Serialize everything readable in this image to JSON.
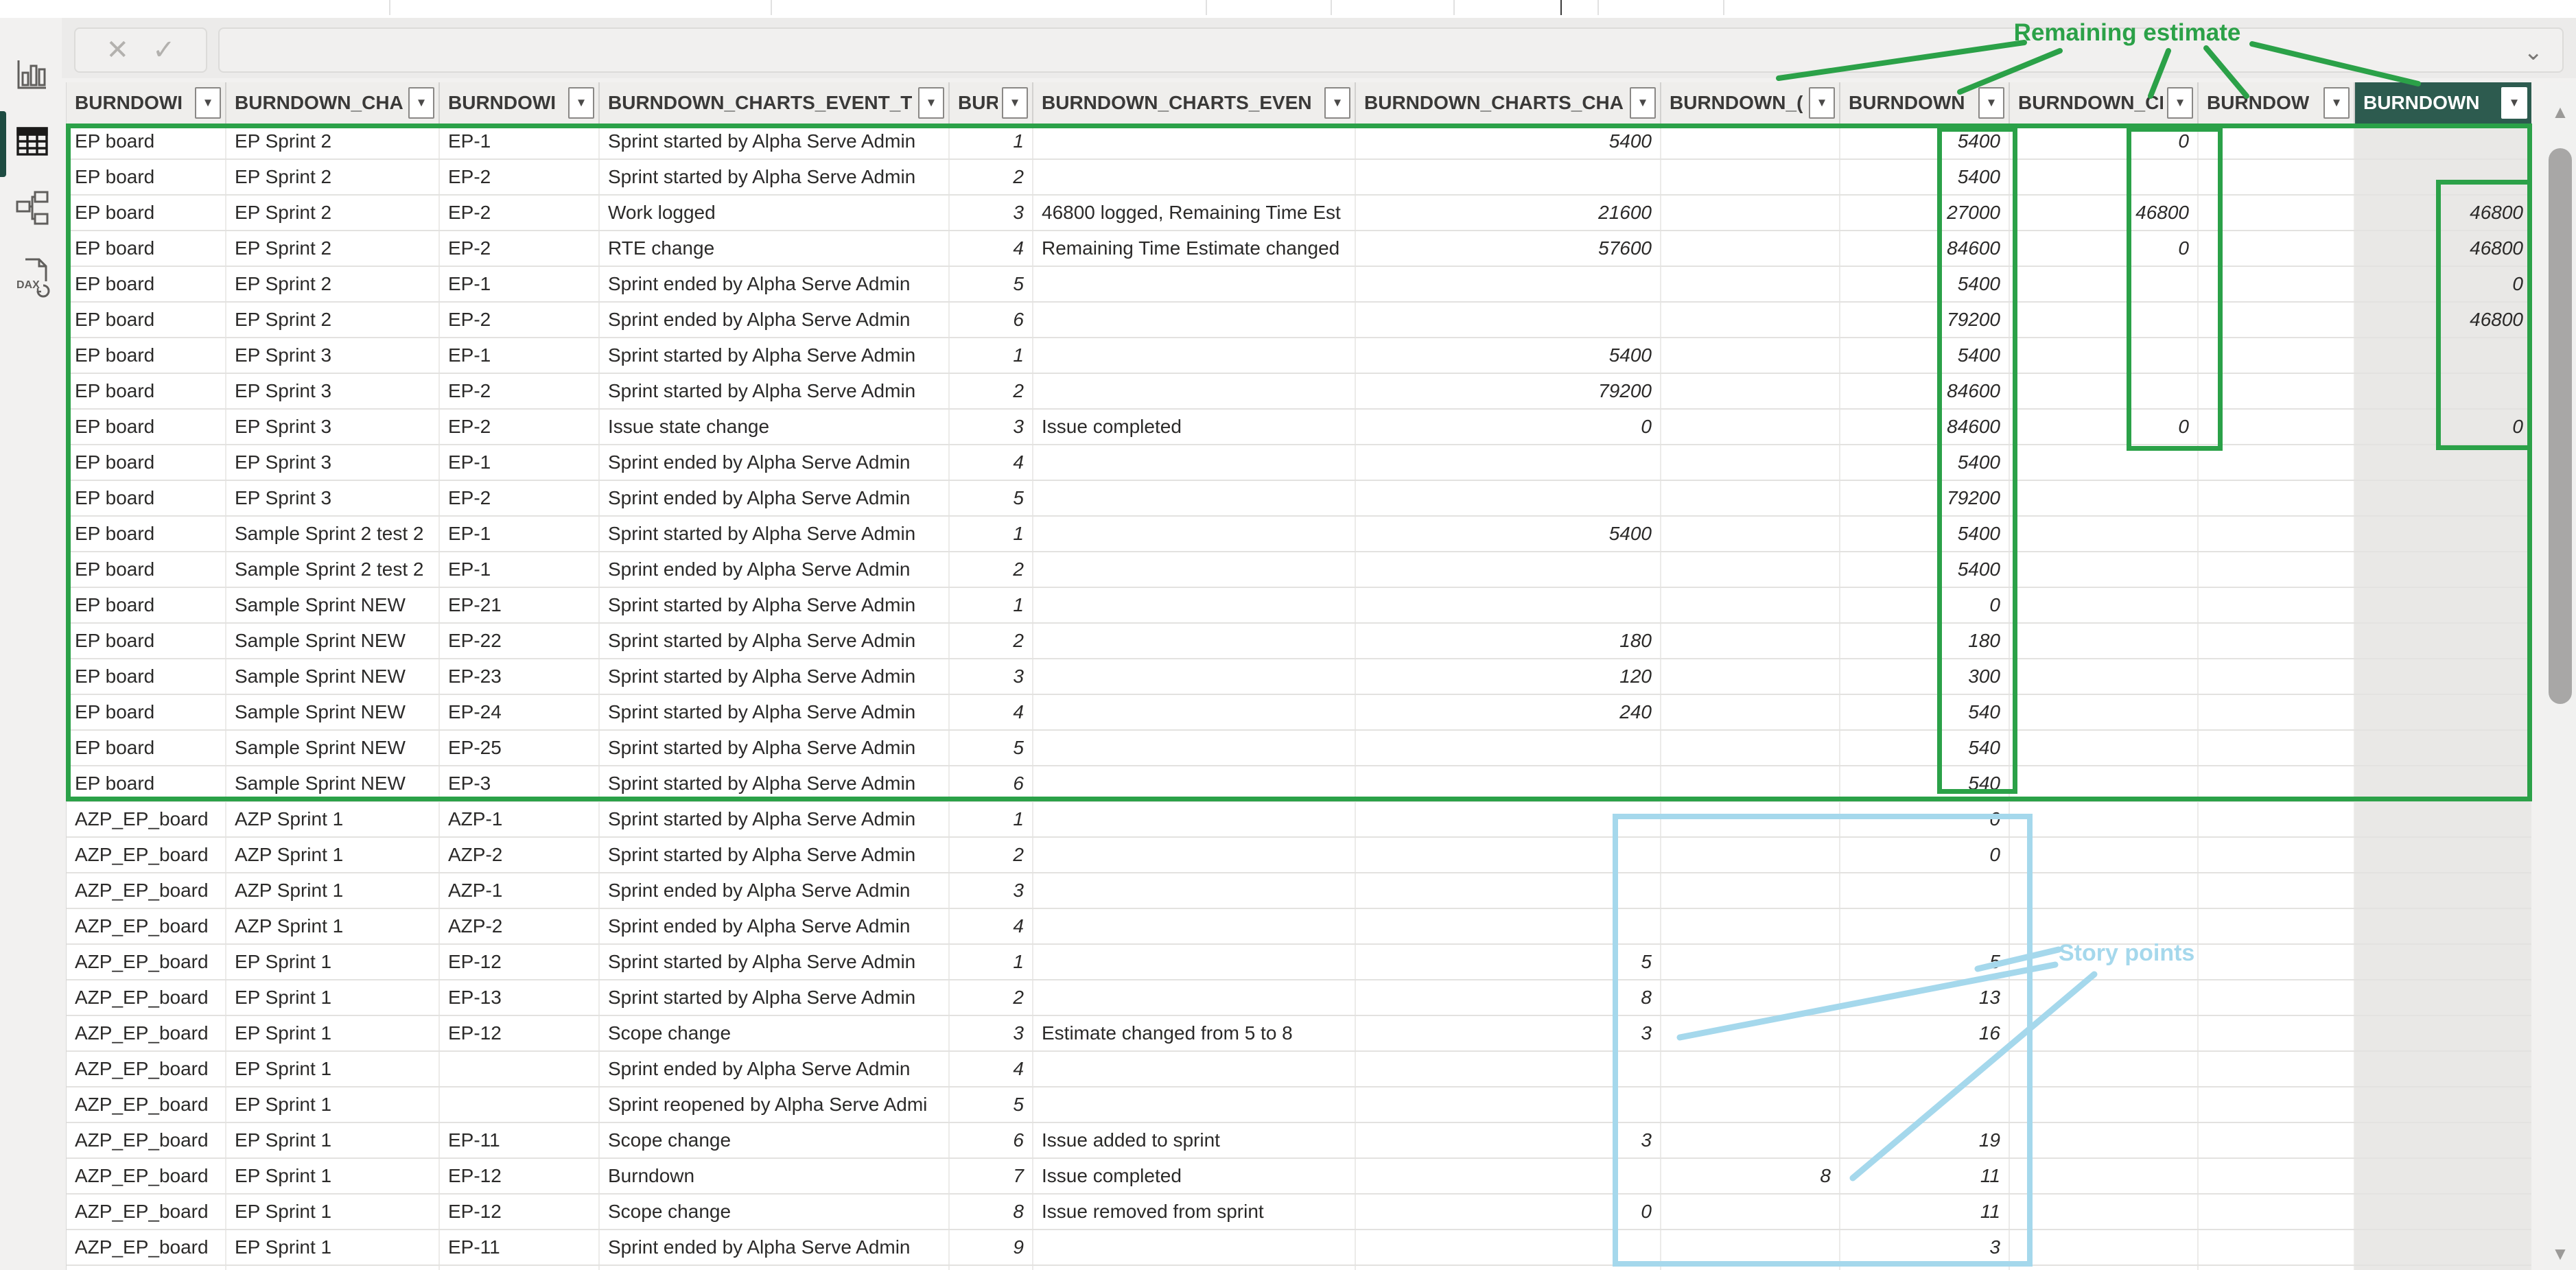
{
  "colors": {
    "annotation_green": "#2ba148",
    "annotation_blue": "#a5d8ec",
    "selected_header_bg": "#2d5b4f",
    "sidebar_selection": "#1e4c42"
  },
  "sidebar": {
    "items": [
      {
        "name": "report-view"
      },
      {
        "name": "table-view",
        "selected": true
      },
      {
        "name": "model-view"
      },
      {
        "name": "dax-query-view"
      }
    ]
  },
  "formula_bar": {
    "cancel_icon": "✕",
    "commit_icon": "✓",
    "value": "",
    "chevron_icon": "⌄"
  },
  "icons": {
    "filter": "▼",
    "scroll_up": "▲",
    "scroll_down": "▼"
  },
  "table": {
    "columns": [
      {
        "label": "BURNDOWI",
        "selected": false
      },
      {
        "label": "BURNDOWN_CHA",
        "selected": false
      },
      {
        "label": "BURNDOWI",
        "selected": false
      },
      {
        "label": "BURNDOWN_CHARTS_EVENT_T",
        "selected": false
      },
      {
        "label": "BUR",
        "selected": false
      },
      {
        "label": "BURNDOWN_CHARTS_EVEN",
        "selected": false
      },
      {
        "label": "BURNDOWN_CHARTS_CHA",
        "selected": false
      },
      {
        "label": "BURNDOWN_(",
        "selected": false
      },
      {
        "label": "BURNDOWN",
        "selected": false
      },
      {
        "label": "BURNDOWN_CI",
        "selected": false
      },
      {
        "label": "BURNDOW",
        "selected": false
      },
      {
        "label": "BURNDOWN",
        "selected": true
      }
    ],
    "rows": [
      [
        "EP board",
        "EP Sprint 2",
        "EP-1",
        "Sprint started by Alpha Serve Admin",
        "1",
        "",
        "5400",
        "",
        "5400",
        "0",
        "",
        ""
      ],
      [
        "EP board",
        "EP Sprint 2",
        "EP-2",
        "Sprint started by Alpha Serve Admin",
        "2",
        "",
        "",
        "",
        "5400",
        "",
        "",
        ""
      ],
      [
        "EP board",
        "EP Sprint 2",
        "EP-2",
        "Work logged",
        "3",
        "46800 logged, Remaining Time Est",
        "21600",
        "",
        "27000",
        "46800",
        "",
        "46800"
      ],
      [
        "EP board",
        "EP Sprint 2",
        "EP-2",
        "RTE change",
        "4",
        "Remaining Time Estimate changed",
        "57600",
        "",
        "84600",
        "0",
        "",
        "46800"
      ],
      [
        "EP board",
        "EP Sprint 2",
        "EP-1",
        "Sprint ended by Alpha Serve Admin",
        "5",
        "",
        "",
        "",
        "5400",
        "",
        "",
        "0"
      ],
      [
        "EP board",
        "EP Sprint 2",
        "EP-2",
        "Sprint ended by Alpha Serve Admin",
        "6",
        "",
        "",
        "",
        "79200",
        "",
        "",
        "46800"
      ],
      [
        "EP board",
        "EP Sprint 3",
        "EP-1",
        "Sprint started by Alpha Serve Admin",
        "1",
        "",
        "5400",
        "",
        "5400",
        "",
        "",
        ""
      ],
      [
        "EP board",
        "EP Sprint 3",
        "EP-2",
        "Sprint started by Alpha Serve Admin",
        "2",
        "",
        "79200",
        "",
        "84600",
        "",
        "",
        ""
      ],
      [
        "EP board",
        "EP Sprint 3",
        "EP-2",
        "Issue state change",
        "3",
        "Issue completed",
        "0",
        "",
        "84600",
        "0",
        "",
        "0"
      ],
      [
        "EP board",
        "EP Sprint 3",
        "EP-1",
        "Sprint ended by Alpha Serve Admin",
        "4",
        "",
        "",
        "",
        "5400",
        "",
        "",
        ""
      ],
      [
        "EP board",
        "EP Sprint 3",
        "EP-2",
        "Sprint ended by Alpha Serve Admin",
        "5",
        "",
        "",
        "",
        "79200",
        "",
        "",
        ""
      ],
      [
        "EP board",
        "Sample Sprint 2 test 2",
        "EP-1",
        "Sprint started by Alpha Serve Admin",
        "1",
        "",
        "5400",
        "",
        "5400",
        "",
        "",
        ""
      ],
      [
        "EP board",
        "Sample Sprint 2 test 2",
        "EP-1",
        "Sprint ended by Alpha Serve Admin",
        "2",
        "",
        "",
        "",
        "5400",
        "",
        "",
        ""
      ],
      [
        "EP board",
        "Sample Sprint NEW",
        "EP-21",
        "Sprint started by Alpha Serve Admin",
        "1",
        "",
        "",
        "",
        "0",
        "",
        "",
        ""
      ],
      [
        "EP board",
        "Sample Sprint NEW",
        "EP-22",
        "Sprint started by Alpha Serve Admin",
        "2",
        "",
        "180",
        "",
        "180",
        "",
        "",
        ""
      ],
      [
        "EP board",
        "Sample Sprint NEW",
        "EP-23",
        "Sprint started by Alpha Serve Admin",
        "3",
        "",
        "120",
        "",
        "300",
        "",
        "",
        ""
      ],
      [
        "EP board",
        "Sample Sprint NEW",
        "EP-24",
        "Sprint started by Alpha Serve Admin",
        "4",
        "",
        "240",
        "",
        "540",
        "",
        "",
        ""
      ],
      [
        "EP board",
        "Sample Sprint NEW",
        "EP-25",
        "Sprint started by Alpha Serve Admin",
        "5",
        "",
        "",
        "",
        "540",
        "",
        "",
        ""
      ],
      [
        "EP board",
        "Sample Sprint NEW",
        "EP-3",
        "Sprint started by Alpha Serve Admin",
        "6",
        "",
        "",
        "",
        "540",
        "",
        "",
        ""
      ],
      [
        "AZP_EP_board",
        "AZP Sprint 1",
        "AZP-1",
        "Sprint started by Alpha Serve Admin",
        "1",
        "",
        "",
        "",
        "0",
        "",
        "",
        ""
      ],
      [
        "AZP_EP_board",
        "AZP Sprint 1",
        "AZP-2",
        "Sprint started by Alpha Serve Admin",
        "2",
        "",
        "",
        "",
        "0",
        "",
        "",
        ""
      ],
      [
        "AZP_EP_board",
        "AZP Sprint 1",
        "AZP-1",
        "Sprint ended by Alpha Serve Admin",
        "3",
        "",
        "",
        "",
        "",
        "",
        "",
        ""
      ],
      [
        "AZP_EP_board",
        "AZP Sprint 1",
        "AZP-2",
        "Sprint ended by Alpha Serve Admin",
        "4",
        "",
        "",
        "",
        "",
        "",
        "",
        ""
      ],
      [
        "AZP_EP_board",
        "EP Sprint 1",
        "EP-12",
        "Sprint started by Alpha Serve Admin",
        "1",
        "",
        "5",
        "",
        "5",
        "",
        "",
        ""
      ],
      [
        "AZP_EP_board",
        "EP Sprint 1",
        "EP-13",
        "Sprint started by Alpha Serve Admin",
        "2",
        "",
        "8",
        "",
        "13",
        "",
        "",
        ""
      ],
      [
        "AZP_EP_board",
        "EP Sprint 1",
        "EP-12",
        "Scope change",
        "3",
        "Estimate changed from 5 to 8",
        "3",
        "",
        "16",
        "",
        "",
        ""
      ],
      [
        "AZP_EP_board",
        "EP Sprint 1",
        "",
        "Sprint ended by Alpha Serve Admin",
        "4",
        "",
        "",
        "",
        "",
        "",
        "",
        ""
      ],
      [
        "AZP_EP_board",
        "EP Sprint 1",
        "",
        "Sprint reopened by Alpha Serve Admi",
        "5",
        "",
        "",
        "",
        "",
        "",
        "",
        ""
      ],
      [
        "AZP_EP_board",
        "EP Sprint 1",
        "EP-11",
        "Scope change",
        "6",
        "Issue added to sprint",
        "3",
        "",
        "19",
        "",
        "",
        ""
      ],
      [
        "AZP_EP_board",
        "EP Sprint 1",
        "EP-12",
        "Burndown",
        "7",
        "Issue completed",
        "",
        "8",
        "11",
        "",
        "",
        ""
      ],
      [
        "AZP_EP_board",
        "EP Sprint 1",
        "EP-12",
        "Scope change",
        "8",
        "Issue removed from sprint",
        "0",
        "",
        "11",
        "",
        "",
        ""
      ],
      [
        "AZP_EP_board",
        "EP Sprint 1",
        "EP-11",
        "Sprint ended by Alpha Serve Admin",
        "9",
        "",
        "",
        "",
        "3",
        "",
        "",
        ""
      ]
    ]
  },
  "annotations": {
    "remaining_estimate_label": "Remaining estimate",
    "story_points_label": "Story points"
  }
}
